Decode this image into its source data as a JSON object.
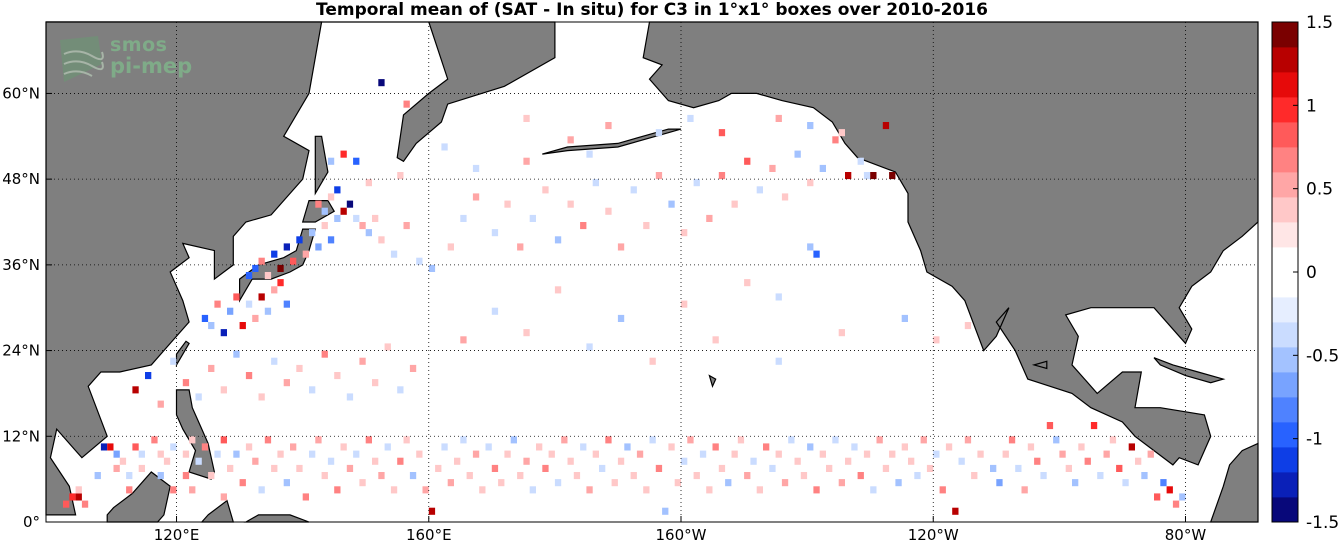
{
  "chart_data": {
    "type": "heatmap",
    "title": "Temporal mean of (SAT - In situ) for C3 in 1°x1° boxes over 2010-2016",
    "x_ticks": [
      "120°E",
      "160°E",
      "160°W",
      "120°W",
      "80°W"
    ],
    "x_tick_values": [
      120,
      160,
      200,
      240,
      280
    ],
    "y_ticks": [
      "0°",
      "12°N",
      "24°N",
      "36°N",
      "48°N",
      "60°N"
    ],
    "y_tick_values": [
      0,
      12,
      24,
      36,
      48,
      60
    ],
    "x_range": [
      99.3,
      291.5
    ],
    "y_range": [
      0,
      70
    ],
    "grid": true,
    "colorbar": {
      "ticks": [
        "1.5",
        "1",
        "0.5",
        "0",
        "-0.5",
        "-1",
        "-1.5"
      ],
      "tick_values": [
        1.5,
        1,
        0.5,
        0,
        -0.5,
        -1,
        -1.5
      ],
      "range": [
        -1.5,
        1.5
      ],
      "colors": [
        "#08087a",
        "#0a20b8",
        "#0e3ee6",
        "#2862ff",
        "#4f82ff",
        "#78a3ff",
        "#a3c2ff",
        "#cadcff",
        "#e6eeff",
        "#ffffff",
        "#ffffff",
        "#ffe6e6",
        "#ffc8c8",
        "#ffa6a6",
        "#ff8282",
        "#ff5a5a",
        "#ff2a2a",
        "#e60a0a",
        "#b80000",
        "#7a0000"
      ]
    },
    "cells_note": "gridded 1°x1° mean differences, mostly in the tropical band 0-12°N and NW Pacific",
    "cells": [
      [
        102,
        2,
        0.9
      ],
      [
        103,
        3,
        1.0
      ],
      [
        104,
        3,
        1.2
      ],
      [
        105,
        2,
        0.6
      ],
      [
        104,
        4,
        0.4
      ],
      [
        107,
        6,
        -0.6
      ],
      [
        108,
        10,
        -1.3
      ],
      [
        109,
        10,
        1.1
      ],
      [
        110,
        9,
        -0.7
      ],
      [
        110,
        7,
        0.5
      ],
      [
        111,
        8,
        0.4
      ],
      [
        112,
        6,
        -0.3
      ],
      [
        112,
        4,
        0.6
      ],
      [
        113,
        10,
        0.8
      ],
      [
        114,
        9,
        -0.4
      ],
      [
        114,
        7,
        0.3
      ],
      [
        116,
        11,
        0.6
      ],
      [
        117,
        9,
        0.3
      ],
      [
        117,
        6,
        -0.5
      ],
      [
        118,
        8,
        0.4
      ],
      [
        119,
        10,
        -0.3
      ],
      [
        119,
        4,
        0.7
      ],
      [
        121,
        9,
        0.4
      ],
      [
        121,
        6,
        0.6
      ],
      [
        122,
        11,
        0.3
      ],
      [
        122,
        4,
        0.5
      ],
      [
        123,
        8,
        -0.4
      ],
      [
        124,
        10,
        0.6
      ],
      [
        125,
        6,
        0.4
      ],
      [
        126,
        9,
        -0.3
      ],
      [
        127,
        11,
        0.8
      ],
      [
        127,
        3,
        0.5
      ],
      [
        128,
        7,
        0.4
      ],
      [
        129,
        9,
        -0.5
      ],
      [
        130,
        5,
        0.6
      ],
      [
        131,
        10,
        0.3
      ],
      [
        132,
        8,
        0.5
      ],
      [
        133,
        4,
        -0.4
      ],
      [
        134,
        11,
        0.6
      ],
      [
        135,
        7,
        0.4
      ],
      [
        136,
        9,
        0.3
      ],
      [
        137,
        5,
        -0.6
      ],
      [
        138,
        10,
        0.5
      ],
      [
        139,
        7,
        0.4
      ],
      [
        140,
        3,
        0.6
      ],
      [
        141,
        9,
        -0.3
      ],
      [
        142,
        11,
        0.5
      ],
      [
        143,
        6,
        0.4
      ],
      [
        144,
        8,
        -0.4
      ],
      [
        145,
        4,
        0.6
      ],
      [
        146,
        10,
        0.3
      ],
      [
        147,
        7,
        0.5
      ],
      [
        148,
        9,
        -0.3
      ],
      [
        149,
        5,
        0.4
      ],
      [
        150,
        11,
        0.6
      ],
      [
        151,
        8,
        0.3
      ],
      [
        152,
        6,
        0.5
      ],
      [
        153,
        10,
        -0.4
      ],
      [
        154,
        4,
        0.3
      ],
      [
        155,
        8,
        0.6
      ],
      [
        156,
        11,
        0.4
      ],
      [
        157,
        6,
        -0.5
      ],
      [
        158,
        9,
        0.3
      ],
      [
        159,
        4,
        0.5
      ],
      [
        160,
        1,
        1.2
      ],
      [
        161,
        7,
        0.4
      ],
      [
        162,
        10,
        -0.3
      ],
      [
        163,
        5,
        0.5
      ],
      [
        164,
        8,
        0.4
      ],
      [
        165,
        11,
        -0.4
      ],
      [
        166,
        6,
        0.3
      ],
      [
        167,
        9,
        0.5
      ],
      [
        168,
        4,
        0.4
      ],
      [
        169,
        10,
        -0.3
      ],
      [
        170,
        7,
        0.6
      ],
      [
        171,
        5,
        0.3
      ],
      [
        172,
        9,
        0.4
      ],
      [
        173,
        11,
        -0.5
      ],
      [
        174,
        6,
        0.3
      ],
      [
        175,
        8,
        0.5
      ],
      [
        176,
        4,
        -0.3
      ],
      [
        177,
        10,
        0.4
      ],
      [
        178,
        7,
        0.6
      ],
      [
        179,
        9,
        0.3
      ],
      [
        180,
        5,
        -0.4
      ],
      [
        181,
        11,
        0.5
      ],
      [
        182,
        8,
        0.3
      ],
      [
        183,
        6,
        0.4
      ],
      [
        184,
        10,
        -0.3
      ],
      [
        185,
        4,
        0.5
      ],
      [
        186,
        9,
        0.3
      ],
      [
        187,
        7,
        -0.4
      ],
      [
        188,
        11,
        0.6
      ],
      [
        189,
        5,
        0.3
      ],
      [
        190,
        8,
        0.4
      ],
      [
        191,
        10,
        -0.5
      ],
      [
        192,
        6,
        0.3
      ],
      [
        193,
        9,
        0.5
      ],
      [
        194,
        4,
        0.4
      ],
      [
        195,
        11,
        -0.3
      ],
      [
        196,
        7,
        0.6
      ],
      [
        197,
        1,
        -0.6
      ],
      [
        198,
        10,
        0.3
      ],
      [
        199,
        5,
        0.4
      ],
      [
        200,
        8,
        -0.3
      ],
      [
        201,
        11,
        0.5
      ],
      [
        202,
        6,
        0.4
      ],
      [
        203,
        9,
        -0.4
      ],
      [
        204,
        4,
        0.3
      ],
      [
        205,
        10,
        0.6
      ],
      [
        206,
        7,
        0.3
      ],
      [
        207,
        5,
        -0.5
      ],
      [
        208,
        9,
        0.4
      ],
      [
        209,
        11,
        0.3
      ],
      [
        210,
        6,
        0.5
      ],
      [
        211,
        8,
        -0.3
      ],
      [
        212,
        4,
        0.4
      ],
      [
        213,
        10,
        0.6
      ],
      [
        214,
        7,
        -0.4
      ],
      [
        215,
        9,
        0.3
      ],
      [
        216,
        5,
        0.5
      ],
      [
        217,
        11,
        -0.3
      ],
      [
        218,
        8,
        0.4
      ],
      [
        219,
        6,
        0.3
      ],
      [
        220,
        10,
        -0.5
      ],
      [
        221,
        4,
        0.6
      ],
      [
        222,
        9,
        0.3
      ],
      [
        223,
        7,
        0.4
      ],
      [
        224,
        11,
        -0.3
      ],
      [
        225,
        5,
        0.5
      ],
      [
        226,
        8,
        0.3
      ],
      [
        227,
        10,
        -0.4
      ],
      [
        228,
        6,
        0.6
      ],
      [
        229,
        9,
        0.3
      ],
      [
        230,
        4,
        -0.3
      ],
      [
        231,
        11,
        0.5
      ],
      [
        232,
        7,
        0.4
      ],
      [
        233,
        9,
        0.3
      ],
      [
        234,
        5,
        -0.6
      ],
      [
        235,
        10,
        0.4
      ],
      [
        236,
        8,
        0.3
      ],
      [
        237,
        6,
        -0.4
      ],
      [
        238,
        11,
        0.5
      ],
      [
        239,
        7,
        0.3
      ],
      [
        240,
        9,
        -0.3
      ],
      [
        241,
        4,
        0.6
      ],
      [
        242,
        10,
        0.4
      ],
      [
        243,
        1,
        1.2
      ],
      [
        244,
        8,
        -0.3
      ],
      [
        245,
        11,
        0.5
      ],
      [
        246,
        6,
        0.3
      ],
      [
        247,
        9,
        0.4
      ],
      [
        249,
        7,
        -0.5
      ],
      [
        250,
        5,
        -0.7
      ],
      [
        251,
        9,
        0.4
      ],
      [
        252,
        11,
        0.6
      ],
      [
        253,
        7,
        -0.4
      ],
      [
        254,
        4,
        0.5
      ],
      [
        255,
        10,
        0.3
      ],
      [
        256,
        8,
        0.6
      ],
      [
        257,
        6,
        -0.3
      ],
      [
        258,
        13,
        0.8
      ],
      [
        259,
        11,
        -0.6
      ],
      [
        260,
        9,
        0.5
      ],
      [
        261,
        7,
        0.4
      ],
      [
        262,
        5,
        -0.5
      ],
      [
        263,
        10,
        0.3
      ],
      [
        264,
        8,
        0.6
      ],
      [
        265,
        13,
        1.0
      ],
      [
        266,
        6,
        -0.4
      ],
      [
        267,
        9,
        0.5
      ],
      [
        268,
        11,
        0.3
      ],
      [
        269,
        7,
        0.8
      ],
      [
        270,
        5,
        -0.3
      ],
      [
        271,
        10,
        1.3
      ],
      [
        272,
        8,
        0.4
      ],
      [
        273,
        6,
        -0.6
      ],
      [
        274,
        9,
        0.5
      ],
      [
        275,
        3,
        0.9
      ],
      [
        276,
        5,
        -0.8
      ],
      [
        277,
        4,
        1.1
      ],
      [
        278,
        2,
        0.6
      ],
      [
        279,
        3,
        -0.5
      ],
      [
        113,
        18,
        1.2
      ],
      [
        115,
        20,
        -1.1
      ],
      [
        117,
        16,
        0.5
      ],
      [
        119,
        22,
        -0.4
      ],
      [
        121,
        19,
        0.6
      ],
      [
        123,
        17,
        -0.3
      ],
      [
        125,
        21,
        0.5
      ],
      [
        127,
        18,
        0.4
      ],
      [
        129,
        23,
        -0.5
      ],
      [
        131,
        20,
        0.6
      ],
      [
        133,
        17,
        0.3
      ],
      [
        135,
        22,
        -0.4
      ],
      [
        137,
        19,
        0.5
      ],
      [
        139,
        21,
        0.3
      ],
      [
        141,
        18,
        -0.3
      ],
      [
        143,
        23,
        0.6
      ],
      [
        145,
        20,
        0.4
      ],
      [
        147,
        17,
        -0.4
      ],
      [
        149,
        22,
        0.5
      ],
      [
        151,
        19,
        0.3
      ],
      [
        153,
        24,
        0.4
      ],
      [
        155,
        18,
        -0.3
      ],
      [
        157,
        21,
        0.5
      ],
      [
        124,
        28,
        -0.9
      ],
      [
        125,
        27,
        -0.5
      ],
      [
        126,
        30,
        0.6
      ],
      [
        127,
        26,
        -1.3
      ],
      [
        128,
        29,
        -0.7
      ],
      [
        129,
        31,
        0.9
      ],
      [
        130,
        27,
        1.1
      ],
      [
        131,
        30,
        -0.4
      ],
      [
        132,
        28,
        0.5
      ],
      [
        133,
        31,
        1.3
      ],
      [
        134,
        29,
        -0.6
      ],
      [
        135,
        32,
        0.5
      ],
      [
        136,
        33,
        1.0
      ],
      [
        137,
        30,
        -0.8
      ],
      [
        131,
        34,
        -0.9
      ],
      [
        132,
        35,
        -1.0
      ],
      [
        133,
        36,
        0.6
      ],
      [
        134,
        34,
        0.4
      ],
      [
        135,
        37,
        -1.1
      ],
      [
        136,
        35,
        1.4
      ],
      [
        137,
        38,
        -1.3
      ],
      [
        138,
        36,
        0.8
      ],
      [
        139,
        39,
        -1.2
      ],
      [
        140,
        37,
        0.5
      ],
      [
        141,
        40,
        -0.5
      ],
      [
        142,
        38,
        -0.7
      ],
      [
        143,
        41,
        0.4
      ],
      [
        144,
        39,
        -0.8
      ],
      [
        145,
        42,
        -0.6
      ],
      [
        146,
        43,
        1.3
      ],
      [
        147,
        44,
        -1.5
      ],
      [
        148,
        42,
        -0.4
      ],
      [
        149,
        41,
        0.5
      ],
      [
        150,
        40,
        -0.5
      ],
      [
        151,
        42,
        0.4
      ],
      [
        142,
        44,
        0.6
      ],
      [
        143,
        43,
        -0.5
      ],
      [
        144,
        45,
        0.4
      ],
      [
        145,
        46,
        -1.2
      ],
      [
        152,
        39,
        0.3
      ],
      [
        154,
        37,
        -0.4
      ],
      [
        156,
        41,
        0.5
      ],
      [
        158,
        36,
        -0.3
      ],
      [
        160,
        35,
        -0.6
      ],
      [
        163,
        38,
        0.4
      ],
      [
        165,
        42,
        -0.3
      ],
      [
        167,
        45,
        0.5
      ],
      [
        170,
        40,
        -0.4
      ],
      [
        172,
        44,
        0.3
      ],
      [
        174,
        38,
        0.5
      ],
      [
        176,
        42,
        -0.3
      ],
      [
        178,
        46,
        0.4
      ],
      [
        180,
        39,
        -0.5
      ],
      [
        182,
        44,
        0.3
      ],
      [
        184,
        41,
        0.6
      ],
      [
        186,
        47,
        -0.4
      ],
      [
        188,
        43,
        0.3
      ],
      [
        190,
        38,
        0.5
      ],
      [
        192,
        46,
        -0.3
      ],
      [
        194,
        41,
        0.4
      ],
      [
        196,
        48,
        0.5
      ],
      [
        198,
        44,
        -0.6
      ],
      [
        200,
        40,
        0.3
      ],
      [
        202,
        47,
        -0.4
      ],
      [
        204,
        42,
        0.5
      ],
      [
        206,
        48,
        0.6
      ],
      [
        208,
        44,
        0.3
      ],
      [
        210,
        50,
        0.8
      ],
      [
        212,
        46,
        -0.4
      ],
      [
        214,
        49,
        0.5
      ],
      [
        216,
        45,
        0.3
      ],
      [
        218,
        51,
        -0.5
      ],
      [
        220,
        47,
        0.4
      ],
      [
        222,
        49,
        -0.6
      ],
      [
        224,
        53,
        0.6
      ],
      [
        226,
        48,
        1.3
      ],
      [
        228,
        50,
        -0.3
      ],
      [
        229,
        48,
        -0.4
      ],
      [
        230,
        48,
        1.4
      ],
      [
        233,
        48,
        1.5
      ],
      [
        221,
        37,
        -0.9
      ],
      [
        220,
        38,
        -0.6
      ],
      [
        210,
        33,
        0.4
      ],
      [
        215,
        31,
        -0.4
      ],
      [
        200,
        30,
        0.3
      ],
      [
        190,
        28,
        -0.5
      ],
      [
        180,
        32,
        0.4
      ],
      [
        170,
        29,
        -0.3
      ],
      [
        165,
        25,
        0.5
      ],
      [
        175,
        26,
        0.3
      ],
      [
        185,
        24,
        -0.4
      ],
      [
        195,
        22,
        0.3
      ],
      [
        205,
        25,
        0.4
      ],
      [
        215,
        22,
        -0.3
      ],
      [
        225,
        26,
        0.4
      ],
      [
        235,
        28,
        -0.5
      ],
      [
        240,
        25,
        0.3
      ],
      [
        245,
        27,
        0.4
      ],
      [
        152,
        61,
        -1.5
      ],
      [
        156,
        58,
        0.6
      ],
      [
        175,
        56,
        0.4
      ],
      [
        188,
        55,
        0.5
      ],
      [
        201,
        56,
        -0.4
      ],
      [
        206,
        54,
        0.8
      ],
      [
        215,
        56,
        0.5
      ],
      [
        220,
        55,
        -0.5
      ],
      [
        225,
        54,
        0.3
      ],
      [
        232,
        55,
        1.3
      ],
      [
        196,
        54,
        -0.4
      ],
      [
        182,
        53,
        0.5
      ],
      [
        162,
        52,
        -0.4
      ],
      [
        148,
        50,
        -0.9
      ],
      [
        146,
        51,
        1.0
      ],
      [
        144,
        50,
        -0.6
      ],
      [
        150,
        47,
        0.4
      ],
      [
        155,
        48,
        0.3
      ],
      [
        167,
        49,
        -0.3
      ],
      [
        175,
        50,
        0.5
      ],
      [
        185,
        51,
        -0.4
      ]
    ]
  },
  "logo": {
    "line1": "smos",
    "line2": "pi-mep"
  }
}
